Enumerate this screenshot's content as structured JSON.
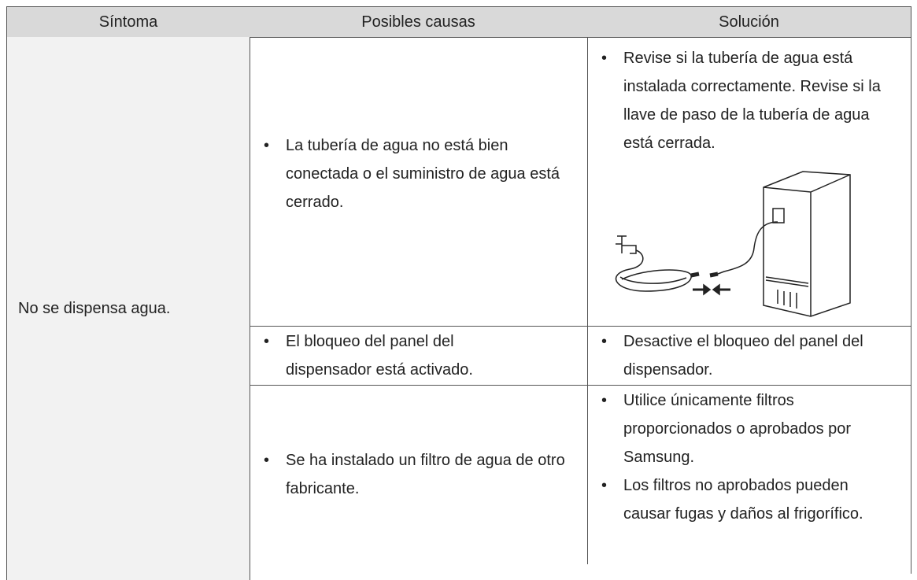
{
  "table": {
    "header": [
      "Síntoma",
      "Posibles causas",
      "Solución"
    ],
    "symptom": "No se dispensa agua.",
    "rows": [
      {
        "cause": "La tubería de agua no está bien conectada o el suministro de agua está cerrado.",
        "solutions": [
          "Revise si la tubería de agua está instalada correctamente. Revise si la llave de paso de la tubería de agua está cerrada."
        ]
      },
      {
        "cause": "El bloqueo del panel del dispensador está activado.",
        "solutions": [
          "Desactive el bloqueo del panel del dispensador."
        ]
      },
      {
        "cause": "Se ha instalado un filtro de agua de otro fabricante.",
        "solutions": [
          "Utilice únicamente filtros proporcionados o aprobados por Samsung.",
          "Los filtros no aprobados pueden causar fugas y daños al frigorífico."
        ]
      }
    ]
  }
}
